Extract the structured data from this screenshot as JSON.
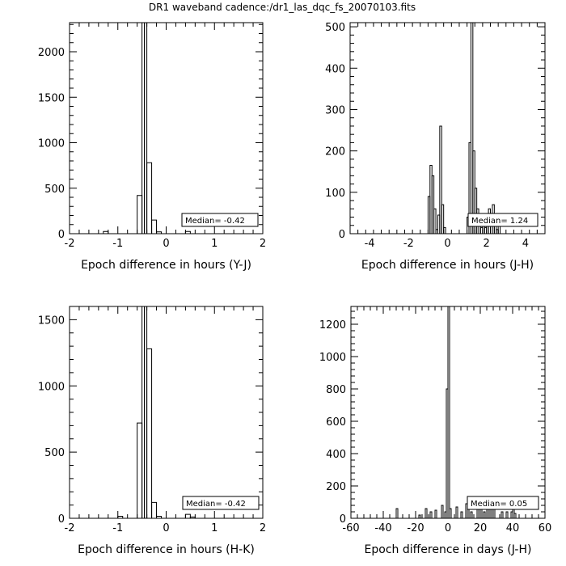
{
  "figure": {
    "title": "DR1 waveband cadence:/dr1_las_dqc_fs_20070103.fits"
  },
  "chart_data": [
    {
      "type": "histogram",
      "xlabel": "Epoch difference in hours (Y-J)",
      "xlim": [
        -2,
        2
      ],
      "ylim": [
        0,
        2320
      ],
      "xticks": [
        -2,
        -1,
        0,
        1,
        2
      ],
      "yticks": [
        0,
        500,
        1000,
        1500,
        2000
      ],
      "median_label": "Median= -0.42",
      "bins": [
        [
          -1.3,
          -1.2,
          25
        ],
        [
          -0.6,
          -0.5,
          420
        ],
        [
          -0.5,
          -0.45,
          2320
        ],
        [
          -0.45,
          -0.4,
          2320
        ],
        [
          -0.4,
          -0.3,
          780
        ],
        [
          -0.3,
          -0.2,
          150
        ],
        [
          -0.2,
          -0.1,
          20
        ],
        [
          0.4,
          0.5,
          25
        ]
      ]
    },
    {
      "type": "histogram",
      "xlabel": "Epoch difference in hours (J-H)",
      "xlim": [
        -5,
        5
      ],
      "ylim": [
        0,
        510
      ],
      "xticks": [
        -4,
        -2,
        0,
        2,
        4
      ],
      "yticks": [
        0,
        100,
        200,
        300,
        400,
        500
      ],
      "median_label": "Median= 1.24",
      "bins": [
        [
          -1.0,
          -0.9,
          90
        ],
        [
          -0.9,
          -0.8,
          165
        ],
        [
          -0.8,
          -0.7,
          140
        ],
        [
          -0.7,
          -0.6,
          60
        ],
        [
          -0.6,
          -0.5,
          10
        ],
        [
          -0.5,
          -0.4,
          45
        ],
        [
          -0.4,
          -0.3,
          260
        ],
        [
          -0.3,
          -0.2,
          70
        ],
        [
          -0.2,
          -0.1,
          15
        ],
        [
          1.0,
          1.1,
          40
        ],
        [
          1.1,
          1.2,
          220
        ],
        [
          1.2,
          1.3,
          510
        ],
        [
          1.3,
          1.4,
          200
        ],
        [
          1.4,
          1.5,
          110
        ],
        [
          1.5,
          1.6,
          60
        ],
        [
          1.6,
          1.7,
          30
        ],
        [
          1.7,
          1.8,
          15
        ],
        [
          1.8,
          1.9,
          30
        ],
        [
          1.9,
          2.0,
          15
        ],
        [
          2.0,
          2.1,
          40
        ],
        [
          2.1,
          2.2,
          60
        ],
        [
          2.2,
          2.3,
          45
        ],
        [
          2.3,
          2.4,
          70
        ],
        [
          2.4,
          2.5,
          30
        ],
        [
          2.5,
          2.6,
          10
        ],
        [
          2.6,
          2.7,
          20
        ]
      ]
    },
    {
      "type": "histogram",
      "xlabel": "Epoch difference in hours (H-K)",
      "xlim": [
        -2,
        2
      ],
      "ylim": [
        0,
        1600
      ],
      "xticks": [
        -2,
        -1,
        0,
        1,
        2
      ],
      "yticks": [
        0,
        500,
        1000,
        1500
      ],
      "median_label": "Median= -0.42",
      "bins": [
        [
          -1.0,
          -0.9,
          15
        ],
        [
          -0.6,
          -0.5,
          720
        ],
        [
          -0.5,
          -0.45,
          1600
        ],
        [
          -0.45,
          -0.4,
          1600
        ],
        [
          -0.4,
          -0.3,
          1280
        ],
        [
          -0.3,
          -0.2,
          120
        ],
        [
          -0.2,
          -0.1,
          15
        ],
        [
          0.4,
          0.5,
          30
        ],
        [
          0.5,
          0.6,
          10
        ]
      ]
    },
    {
      "type": "histogram",
      "xlabel": "Epoch difference in days (J-H)",
      "xlim": [
        -60,
        60
      ],
      "ylim": [
        0,
        1310
      ],
      "xticks": [
        -60,
        -40,
        -20,
        0,
        20,
        40,
        60
      ],
      "yticks": [
        0,
        200,
        400,
        600,
        800,
        1000,
        1200
      ],
      "median_label": "Median= 0.05",
      "bins": [
        [
          -32,
          -31,
          60
        ],
        [
          -18,
          -17,
          20
        ],
        [
          -14,
          -13,
          60
        ],
        [
          -11,
          -10,
          40
        ],
        [
          -8,
          -7,
          50
        ],
        [
          -4,
          -3,
          80
        ],
        [
          -2,
          -1,
          40
        ],
        [
          -1,
          0,
          800
        ],
        [
          0,
          1,
          1310
        ],
        [
          1,
          2,
          60
        ],
        [
          5,
          6,
          70
        ],
        [
          8,
          9,
          40
        ],
        [
          11,
          12,
          90
        ],
        [
          12,
          13,
          70
        ],
        [
          14,
          15,
          40
        ],
        [
          18,
          19,
          60
        ],
        [
          20,
          21,
          70
        ],
        [
          22,
          23,
          40
        ],
        [
          24,
          25,
          60
        ],
        [
          26,
          27,
          70
        ],
        [
          28,
          29,
          70
        ],
        [
          33,
          34,
          40
        ],
        [
          36,
          37,
          40
        ],
        [
          39,
          40,
          40
        ],
        [
          40,
          41,
          60
        ],
        [
          41,
          42,
          30
        ]
      ]
    }
  ]
}
